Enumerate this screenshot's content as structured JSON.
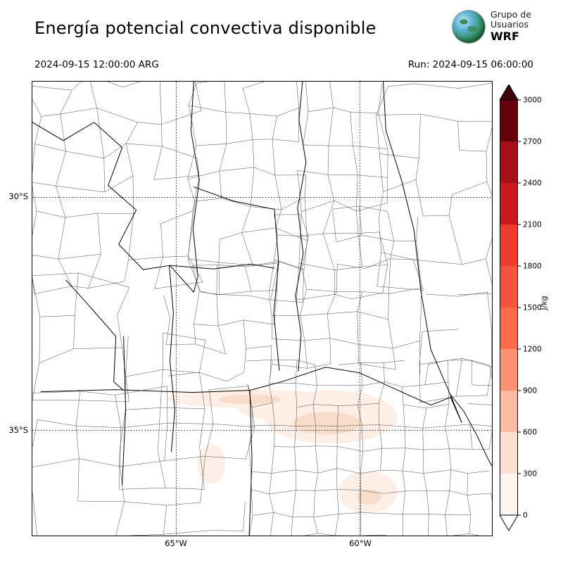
{
  "header": {
    "title": "Energía potencial convectiva disponible",
    "logo": {
      "line1": "Grupo de",
      "line2": "Usuarios",
      "line3": "WRF"
    },
    "valid_time": "2024-09-15 12:00:00 ARG",
    "run_label": "Run: 2024-09-15 06:00:00"
  },
  "map": {
    "x_ticks": [
      {
        "label": "65°W"
      },
      {
        "label": "60°W"
      }
    ],
    "y_ticks": [
      {
        "label": "30°S"
      },
      {
        "label": "35°S"
      }
    ]
  },
  "chart_data": {
    "type": "heatmap",
    "title": "Energía potencial convectiva disponible",
    "units": "J/kg",
    "valid_time": "2024-09-15 12:00:00 ARG",
    "run": "2024-09-15 06:00:00",
    "lat_gridlines": [
      "30°S",
      "35°S"
    ],
    "lon_gridlines": [
      "65°W",
      "60°W"
    ],
    "colorbar": {
      "label": "J/kg",
      "ticks": [
        0,
        300,
        600,
        900,
        1200,
        1500,
        1800,
        2100,
        2400,
        2700,
        3000
      ],
      "colors_low_to_high": [
        "#fff5f0",
        "#fee0d2",
        "#fcbba1",
        "#fc9272",
        "#fb6a4a",
        "#f6543e",
        "#ef3b2c",
        "#cb181d",
        "#a50f15",
        "#67000d"
      ],
      "over_arrow_color": "#3f0008",
      "under_arrow_color": "#ffffff"
    },
    "field_summary": "Weak CAPE shading (about 0-600 J/kg) near 35°S between roughly 66°W and 59°W; remainder of domain near 0"
  }
}
